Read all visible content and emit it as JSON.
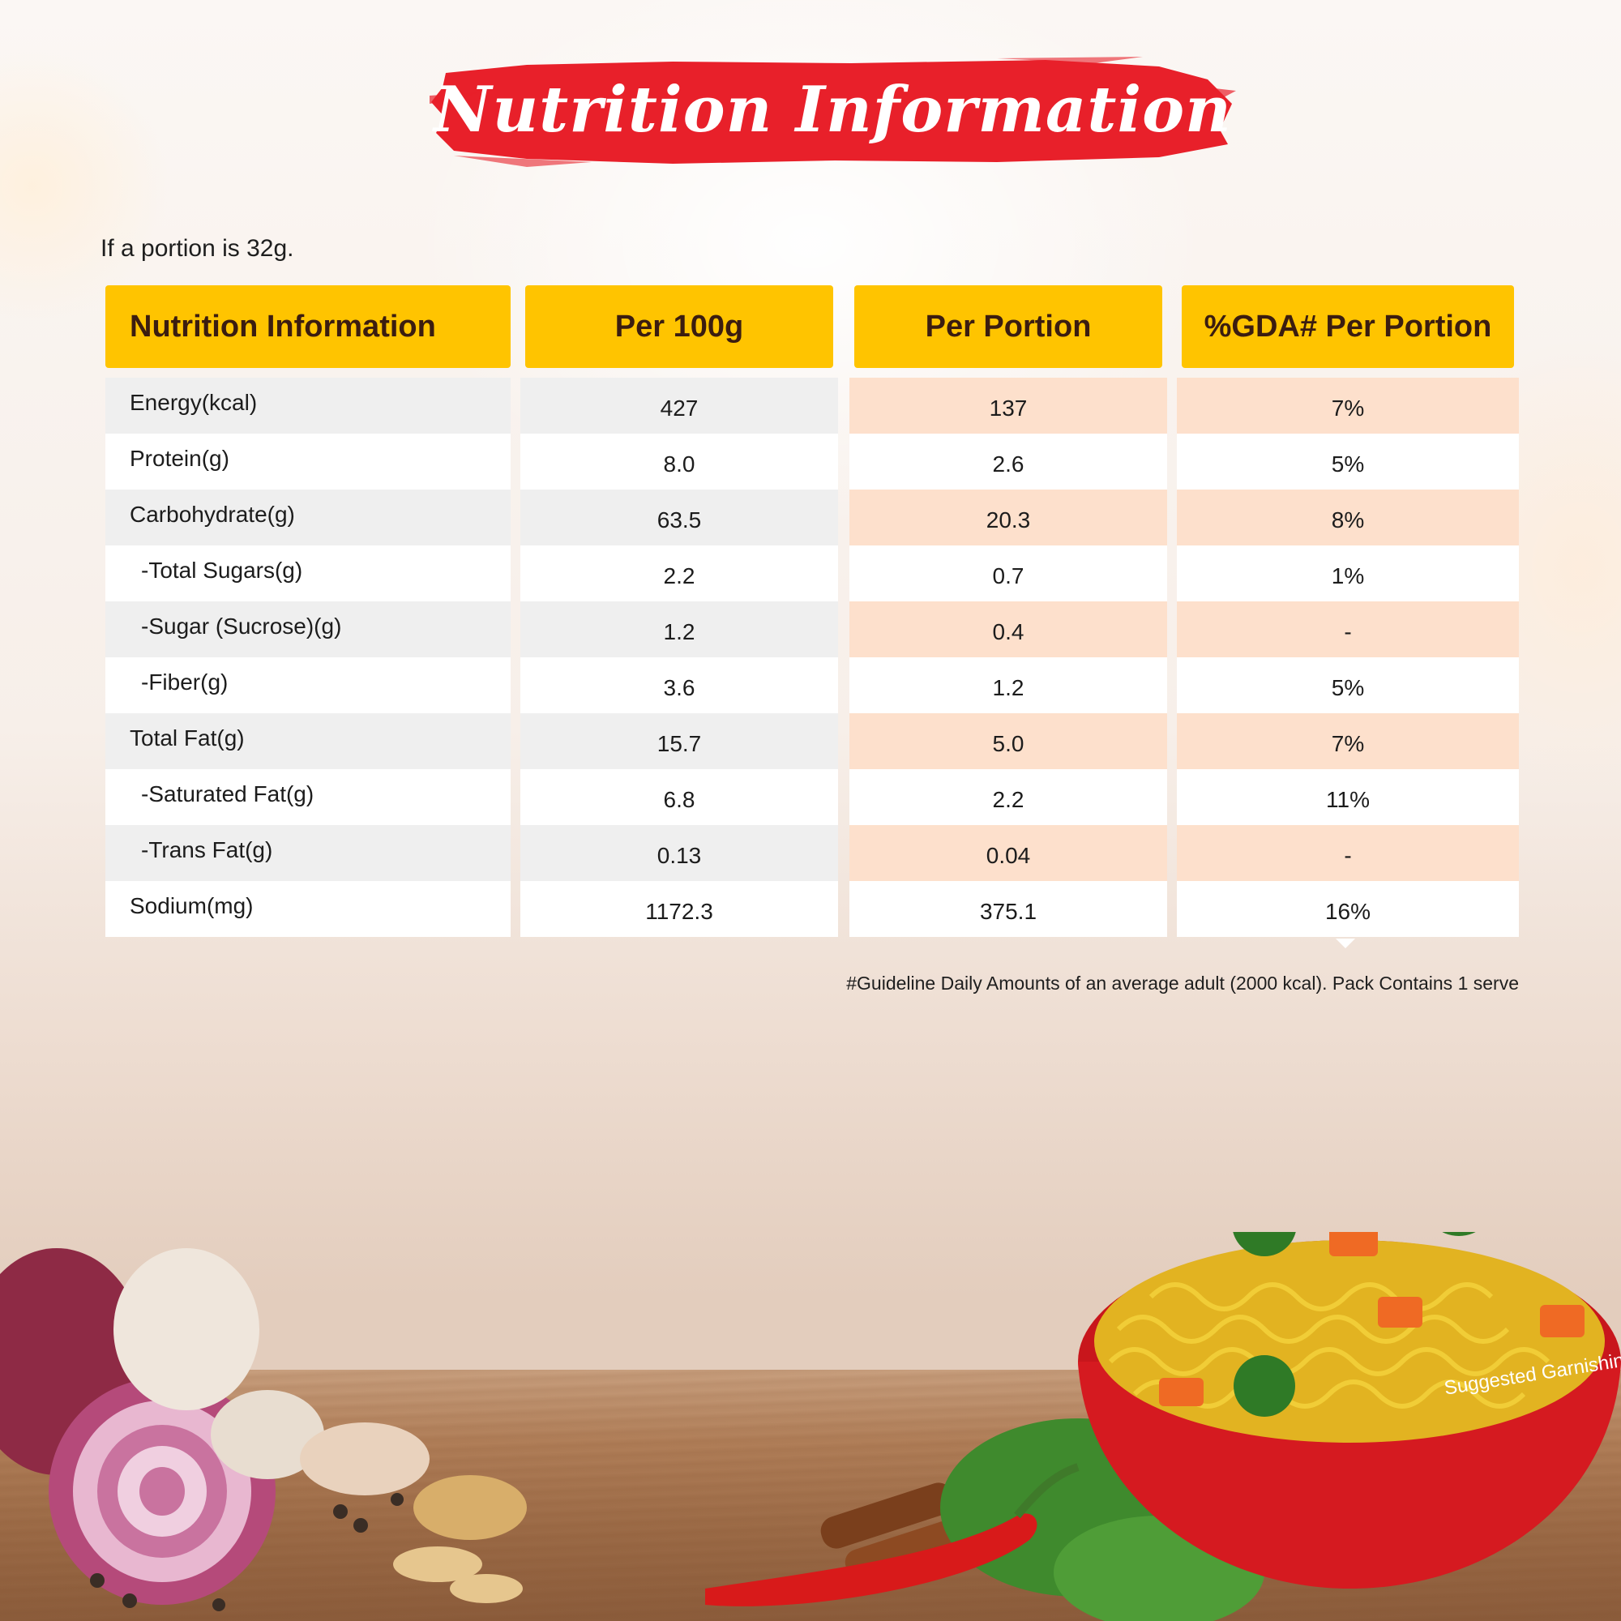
{
  "title": "Nutrition Information",
  "portion_note": "If a portion is 32g.",
  "table": {
    "headers": [
      "Nutrition Information",
      "Per 100g",
      "Per Portion",
      "%GDA# Per Portion"
    ],
    "rows": [
      {
        "label": "Energy(kcal)",
        "indent": false,
        "per100": "427",
        "portion": "137",
        "gda": "7%"
      },
      {
        "label": "Protein(g)",
        "indent": false,
        "per100": "8.0",
        "portion": "2.6",
        "gda": "5%"
      },
      {
        "label": "Carbohydrate(g)",
        "indent": false,
        "per100": "63.5",
        "portion": "20.3",
        "gda": "8%"
      },
      {
        "label": "-Total Sugars(g)",
        "indent": true,
        "per100": "2.2",
        "portion": "0.7",
        "gda": "1%"
      },
      {
        "label": "-Sugar (Sucrose)(g)",
        "indent": true,
        "per100": "1.2",
        "portion": "0.4",
        "gda": "-"
      },
      {
        "label": "-Fiber(g)",
        "indent": true,
        "per100": "3.6",
        "portion": "1.2",
        "gda": "5%"
      },
      {
        "label": "Total Fat(g)",
        "indent": false,
        "per100": "15.7",
        "portion": "5.0",
        "gda": "7%"
      },
      {
        "label": "-Saturated Fat(g)",
        "indent": true,
        "per100": "6.8",
        "portion": "2.2",
        "gda": "11%"
      },
      {
        "label": "-Trans Fat(g)",
        "indent": true,
        "per100": "0.13",
        "portion": "0.04",
        "gda": "-"
      },
      {
        "label": "Sodium(mg)",
        "indent": false,
        "per100": "1172.3",
        "portion": "375.1",
        "gda": "16%"
      }
    ]
  },
  "footnote": "#Guideline Daily Amounts of an average adult (2000 kcal). Pack Contains 1 serve",
  "garnish_note": "Suggested Garnishing",
  "colors": {
    "banner_red": "#e8202a",
    "header_yellow": "#ffc400",
    "header_text": "#3b1d10",
    "row_grey": "#efefef",
    "row_peach": "#fde0cc"
  }
}
